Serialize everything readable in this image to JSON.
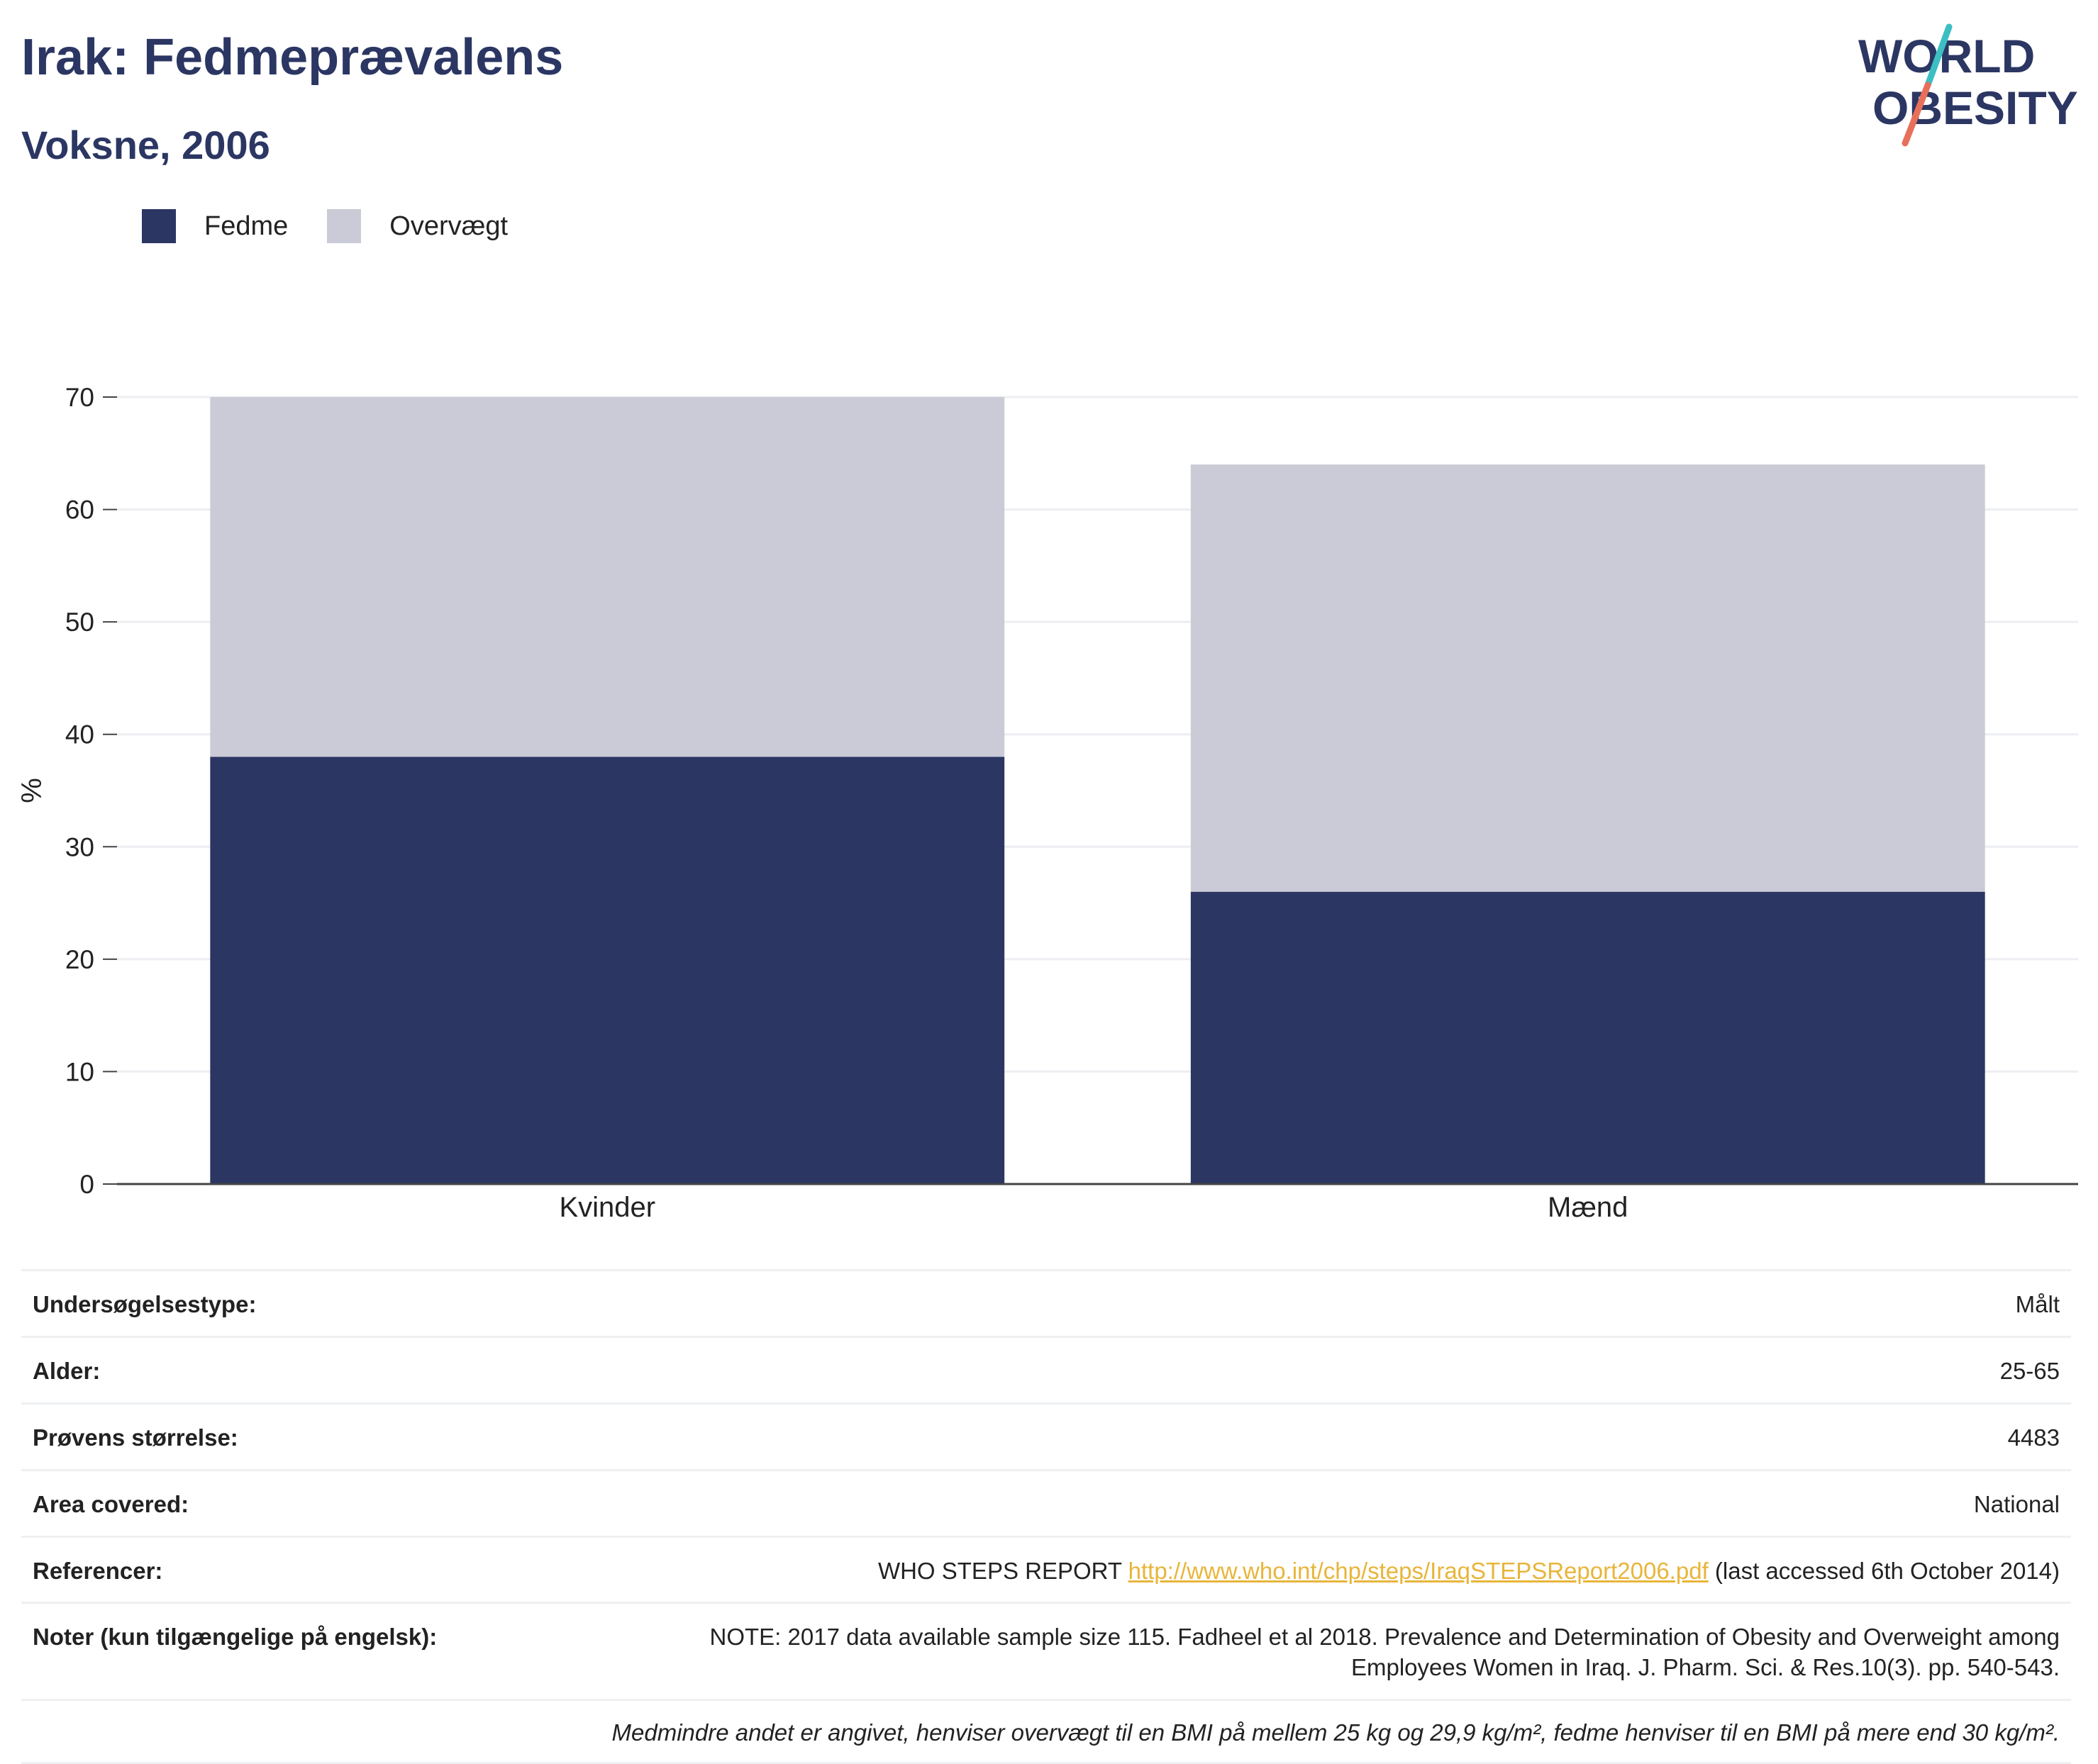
{
  "header": {
    "title": "Irak: Fedmeprævalens",
    "subtitle": "Voksne, 2006"
  },
  "logo": {
    "line1": "WORLD",
    "line2": "OBESITY",
    "text_color": "#2b3663",
    "slash_top_color": "#3bbfc3",
    "slash_bottom_color": "#e8705a"
  },
  "legend": [
    {
      "label": "Fedme",
      "color": "#2b3663"
    },
    {
      "label": "Overvægt",
      "color": "#cacbd7"
    }
  ],
  "chart_data": {
    "type": "bar",
    "stacked": true,
    "categories": [
      "Kvinder",
      "Mænd"
    ],
    "series": [
      {
        "name": "Fedme",
        "color": "#2b3663",
        "values": [
          38,
          26
        ]
      },
      {
        "name": "Overvægt",
        "color": "#cacbd7",
        "values": [
          32,
          38
        ]
      }
    ],
    "ylabel": "%",
    "ylim": [
      0,
      70
    ],
    "yticks": [
      0,
      10,
      20,
      30,
      40,
      50,
      60,
      70
    ],
    "grid": true,
    "legend_position": "top-left"
  },
  "meta": {
    "survey_type": {
      "label": "Undersøgelsestype:",
      "value": "Målt"
    },
    "age": {
      "label": "Alder:",
      "value": "25-65"
    },
    "sample": {
      "label": "Prøvens størrelse:",
      "value": "4483"
    },
    "area": {
      "label": "Area covered:",
      "value": "National"
    },
    "references": {
      "label": "Referencer:",
      "prefix": "WHO STEPS REPORT ",
      "link": "http://www.who.int/chp/steps/IraqSTEPSReport2006.pdf",
      "suffix": " (last accessed 6th October 2014)"
    },
    "notes": {
      "label": "Noter (kun tilgængelige på engelsk):",
      "value": "NOTE: 2017 data available sample size 115. Fadheel et al 2018. Prevalence and Determination of Obesity and Overweight among Employees Women in Iraq. J. Pharm. Sci. & Res.10(3). pp. 540-543."
    },
    "footnote": "Medmindre andet er angivet, henviser overvægt til en BMI på mellem 25 kg og 29,9 kg/m², fedme henviser til en BMI på mere end 30 kg/m²."
  }
}
